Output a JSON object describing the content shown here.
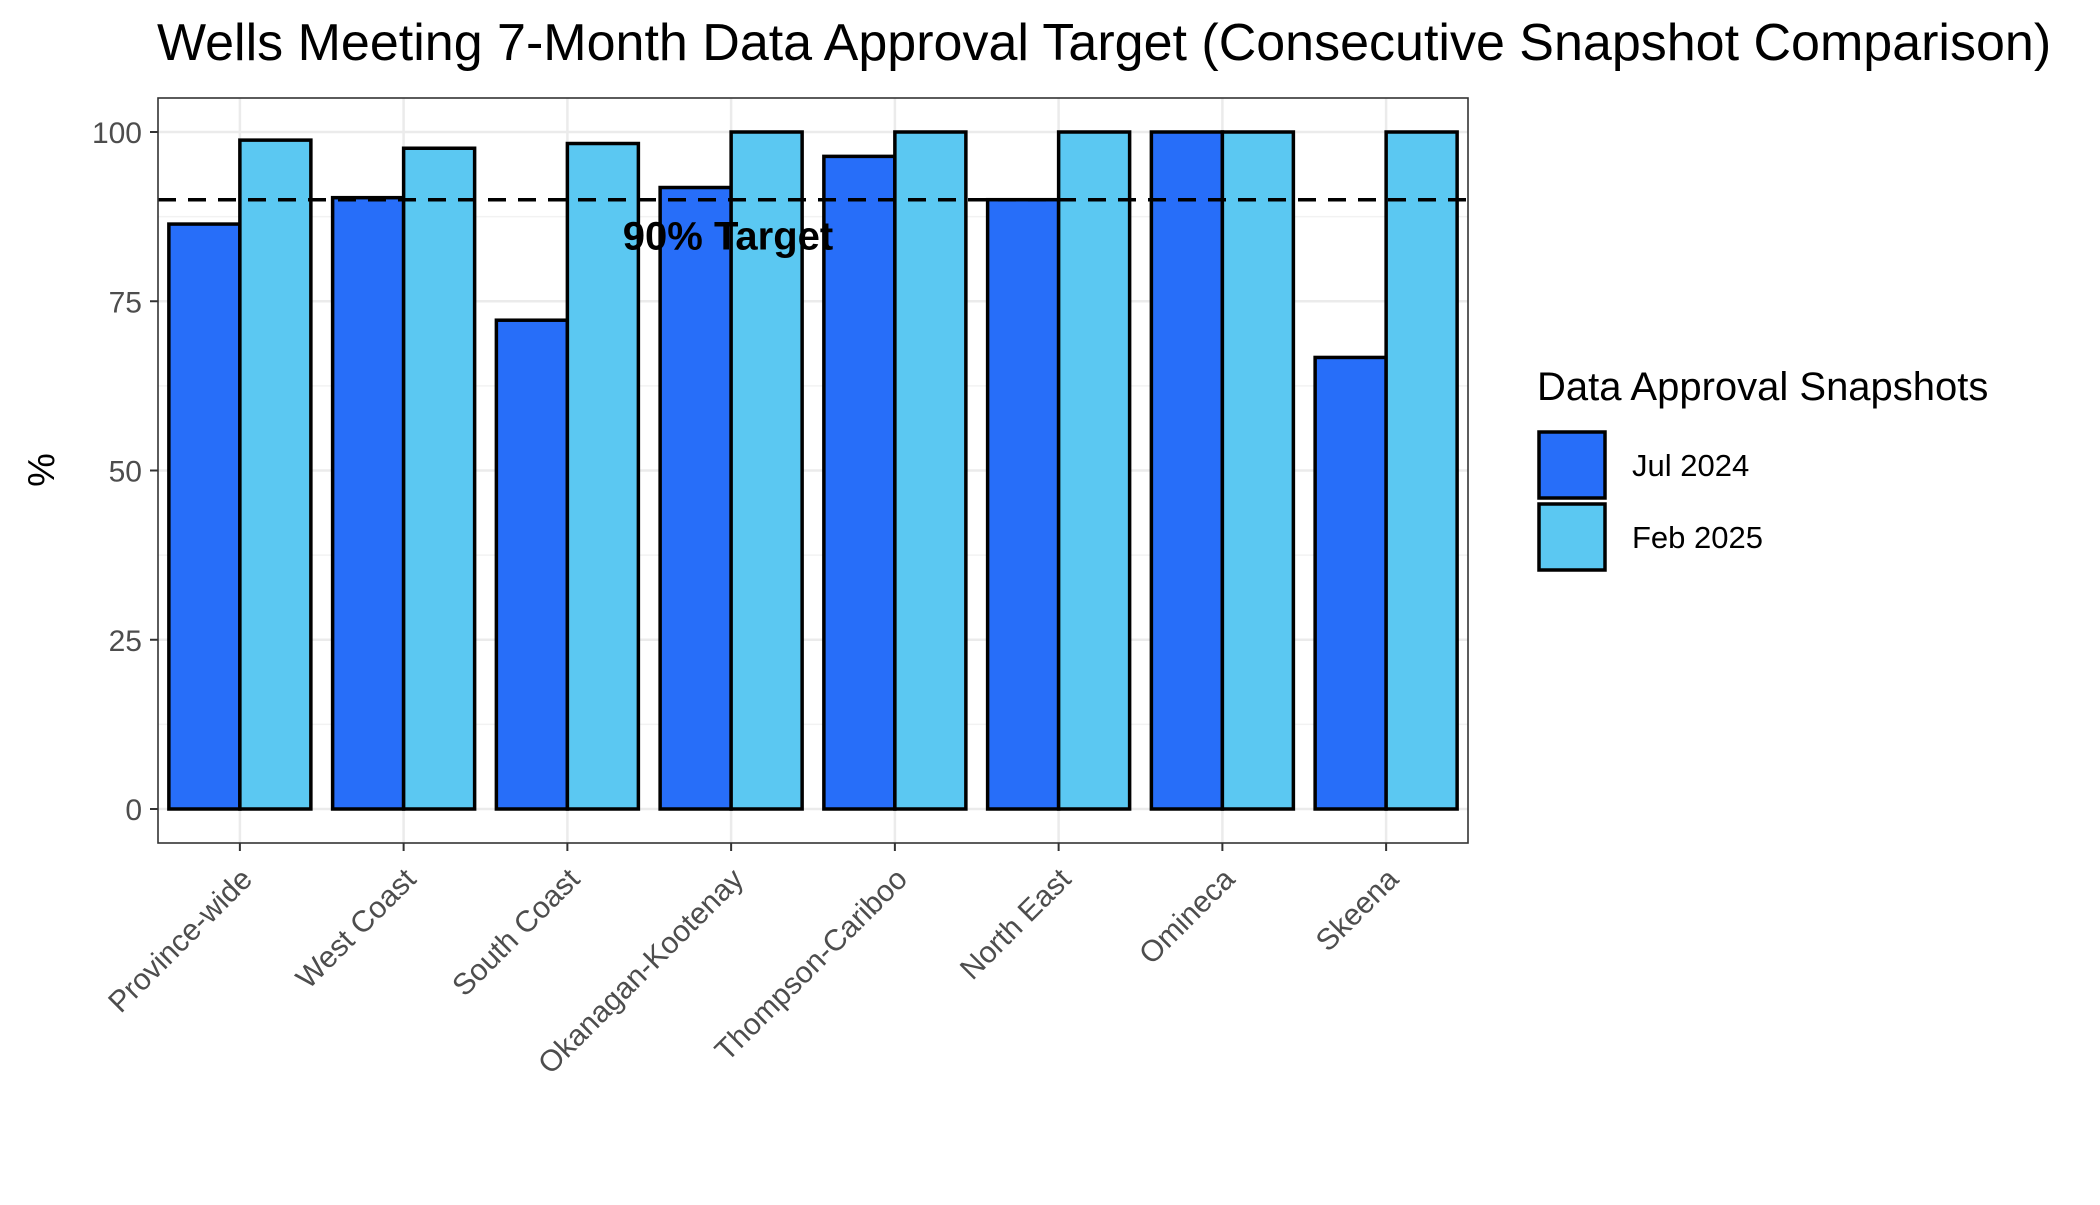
{
  "chart_data": {
    "type": "bar",
    "title": "Wells Meeting 7-Month Data Approval Target (Consecutive Snapshot Comparison)",
    "xlabel": "",
    "ylabel": "%",
    "categories": [
      "Province-wide",
      "West Coast",
      "South Coast",
      "Okanagan-Kootenay",
      "Thompson-Cariboo",
      "North East",
      "Omineca",
      "Skeena"
    ],
    "series": [
      {
        "name": "Jul 2024",
        "color": "#276ef9",
        "values": [
          86.4,
          90.3,
          72.2,
          91.8,
          96.4,
          90.0,
          100,
          66.7
        ]
      },
      {
        "name": "Feb 2025",
        "color": "#5bc8f2",
        "values": [
          98.8,
          97.6,
          98.3,
          100,
          100,
          100,
          100,
          100
        ]
      }
    ],
    "ylim": [
      0,
      105
    ],
    "yticks": [
      0,
      25,
      50,
      75,
      100
    ],
    "target": {
      "value": 90,
      "label": "90% Target"
    },
    "legend": {
      "title": "Data Approval Snapshots",
      "position": "right"
    },
    "grid": true
  }
}
